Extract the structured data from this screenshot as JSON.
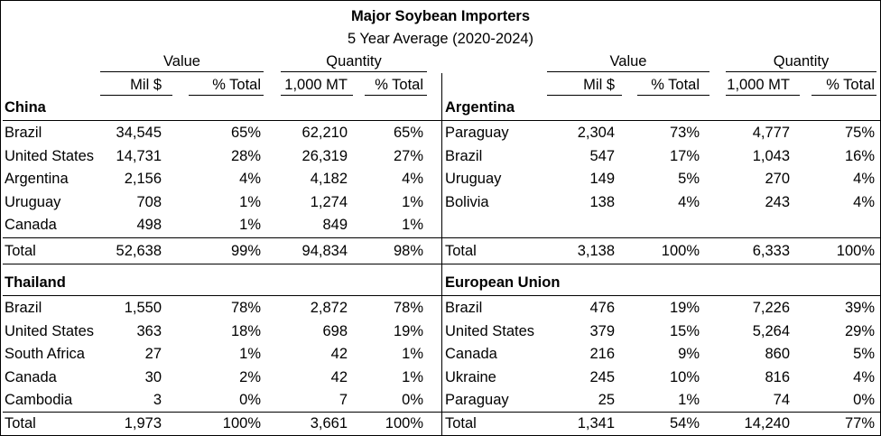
{
  "title": "Major Soybean Importers",
  "subtitle": "5 Year Average (2020-2024)",
  "headers": {
    "value": "Value",
    "quantity": "Quantity",
    "mil": "Mil $",
    "pct": "% Total",
    "mt": "1,000 MT"
  },
  "sections": [
    {
      "name": "China",
      "rows": [
        [
          "Brazil",
          "34,545",
          "65%",
          "62,210",
          "65%"
        ],
        [
          "United States",
          "14,731",
          "28%",
          "26,319",
          "27%"
        ],
        [
          "Argentina",
          "2,156",
          "4%",
          "4,182",
          "4%"
        ],
        [
          "Uruguay",
          "708",
          "1%",
          "1,274",
          "1%"
        ],
        [
          "Canada",
          "498",
          "1%",
          "849",
          "1%"
        ]
      ],
      "total": [
        "Total",
        "52,638",
        "99%",
        "94,834",
        "98%"
      ]
    },
    {
      "name": "Argentina",
      "rows": [
        [
          "Paraguay",
          "2,304",
          "73%",
          "4,777",
          "75%"
        ],
        [
          "Brazil",
          "547",
          "17%",
          "1,043",
          "16%"
        ],
        [
          "Uruguay",
          "149",
          "5%",
          "270",
          "4%"
        ],
        [
          "Bolivia",
          "138",
          "4%",
          "243",
          "4%"
        ]
      ],
      "total": [
        "Total",
        "3,138",
        "100%",
        "6,333",
        "100%"
      ]
    },
    {
      "name": "Thailand",
      "rows": [
        [
          "Brazil",
          "1,550",
          "78%",
          "2,872",
          "78%"
        ],
        [
          "United States",
          "363",
          "18%",
          "698",
          "19%"
        ],
        [
          "South Africa",
          "27",
          "1%",
          "42",
          "1%"
        ],
        [
          "Canada",
          "30",
          "2%",
          "42",
          "1%"
        ],
        [
          "Cambodia",
          "3",
          "0%",
          "7",
          "0%"
        ]
      ],
      "total": [
        "Total",
        "1,973",
        "100%",
        "3,661",
        "100%"
      ]
    },
    {
      "name": "European Union",
      "rows": [
        [
          "Brazil",
          "476",
          "19%",
          "7,226",
          "39%"
        ],
        [
          "United States",
          "379",
          "15%",
          "5,264",
          "29%"
        ],
        [
          "Canada",
          "216",
          "9%",
          "860",
          "5%"
        ],
        [
          "Ukraine",
          "245",
          "10%",
          "816",
          "4%"
        ],
        [
          "Paraguay",
          "25",
          "1%",
          "74",
          "0%"
        ]
      ],
      "total": [
        "Total",
        "1,341",
        "54%",
        "14,240",
        "77%"
      ]
    }
  ]
}
